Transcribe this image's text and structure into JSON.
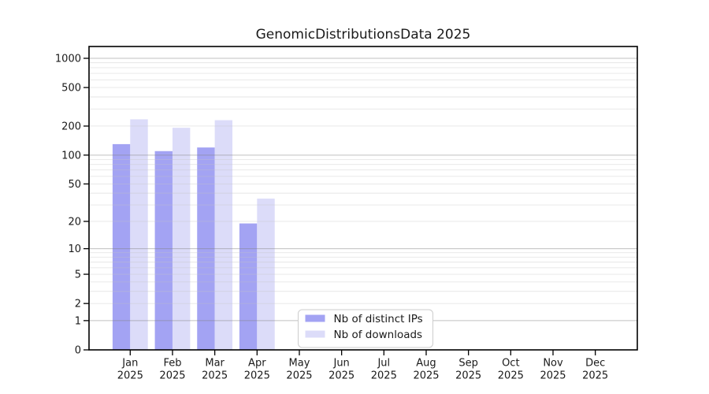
{
  "title": "GenomicDistributionsData 2025",
  "chart_data": {
    "type": "bar",
    "title": "GenomicDistributionsData 2025",
    "categories": [
      "Jan",
      "Feb",
      "Mar",
      "Apr",
      "May",
      "Jun",
      "Jul",
      "Aug",
      "Sep",
      "Oct",
      "Nov",
      "Dec"
    ],
    "year_label": "2025",
    "series": [
      {
        "name": "Nb of distinct IPs",
        "color": "#a3a3f3",
        "values": [
          130,
          110,
          120,
          19,
          null,
          null,
          null,
          null,
          null,
          null,
          null,
          null
        ]
      },
      {
        "name": "Nb of downloads",
        "color": "#dcdcf9",
        "values": [
          235,
          192,
          230,
          35,
          null,
          null,
          null,
          null,
          null,
          null,
          null,
          null
        ]
      }
    ],
    "yticks": [
      0,
      1,
      2,
      5,
      10,
      20,
      50,
      100,
      200,
      500,
      1000
    ],
    "scale": "log1p",
    "ylim": [
      0,
      1320
    ],
    "xlabel": "",
    "ylabel": "",
    "grid": true,
    "grid_minor_values_per_decade": [
      2,
      3,
      4,
      5,
      6,
      7,
      8,
      9
    ],
    "legend": {
      "position": "inside-bottom-center",
      "entries": [
        "Nb of distinct IPs",
        "Nb of downloads"
      ]
    },
    "colors": {
      "bar_ips": "#a3a3f3",
      "bar_downloads": "#dcdcf9",
      "grid_major": "#828282",
      "grid_minor": "#c3c3c3",
      "spine": "#000000",
      "legend_border": "#cccccc",
      "text": "#1a1a1a"
    }
  }
}
